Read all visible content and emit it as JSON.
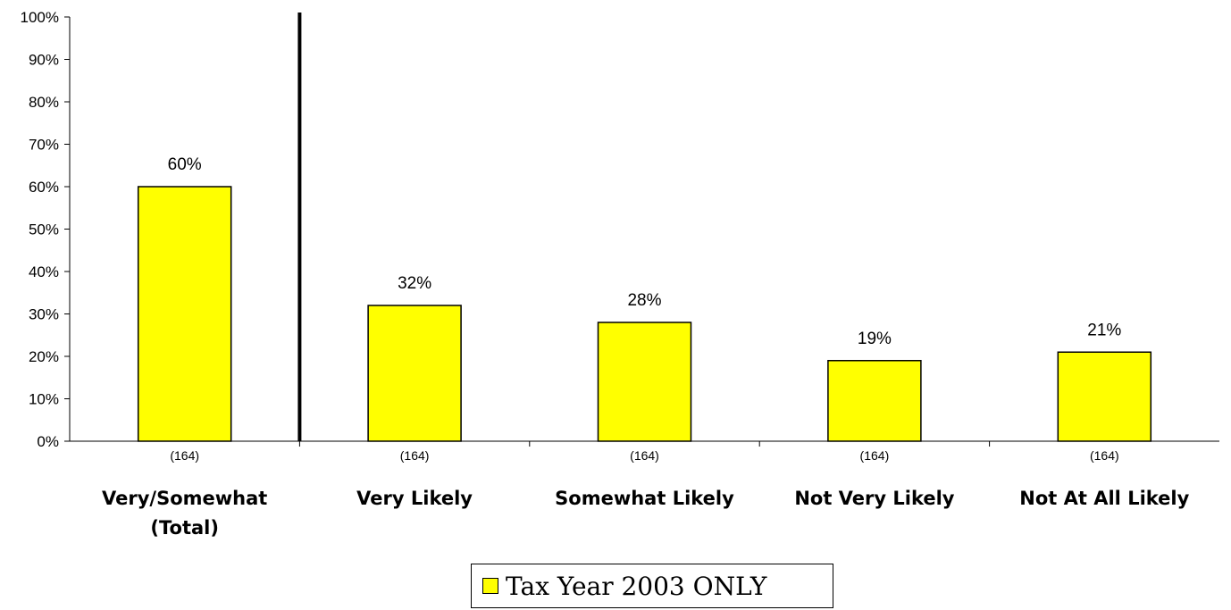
{
  "chart_data": {
    "type": "bar",
    "categories": [
      [
        "Very/Somewhat",
        "(Total)"
      ],
      [
        "Very Likely"
      ],
      [
        "Somewhat Likely"
      ],
      [
        "Not Very Likely"
      ],
      [
        "Not At All Likely"
      ]
    ],
    "series": [
      {
        "name": "Tax Year 2003 ONLY",
        "values": [
          60,
          32,
          28,
          19,
          21
        ],
        "value_labels": [
          "60%",
          "32%",
          "28%",
          "19%",
          "21%"
        ],
        "sample_sizes": [
          "(164)",
          "(164)",
          "(164)",
          "(164)",
          "(164)"
        ],
        "color": "#ffff00"
      }
    ],
    "ylim": [
      0,
      100
    ],
    "y_ticks": [
      0,
      10,
      20,
      30,
      40,
      50,
      60,
      70,
      80,
      90,
      100
    ],
    "y_tick_labels": [
      "0%",
      "10%",
      "20%",
      "30%",
      "40%",
      "50%",
      "60%",
      "70%",
      "80%",
      "90%",
      "100%"
    ],
    "grid": false,
    "legend_position": "bottom-center",
    "divider_after_category": 0
  }
}
